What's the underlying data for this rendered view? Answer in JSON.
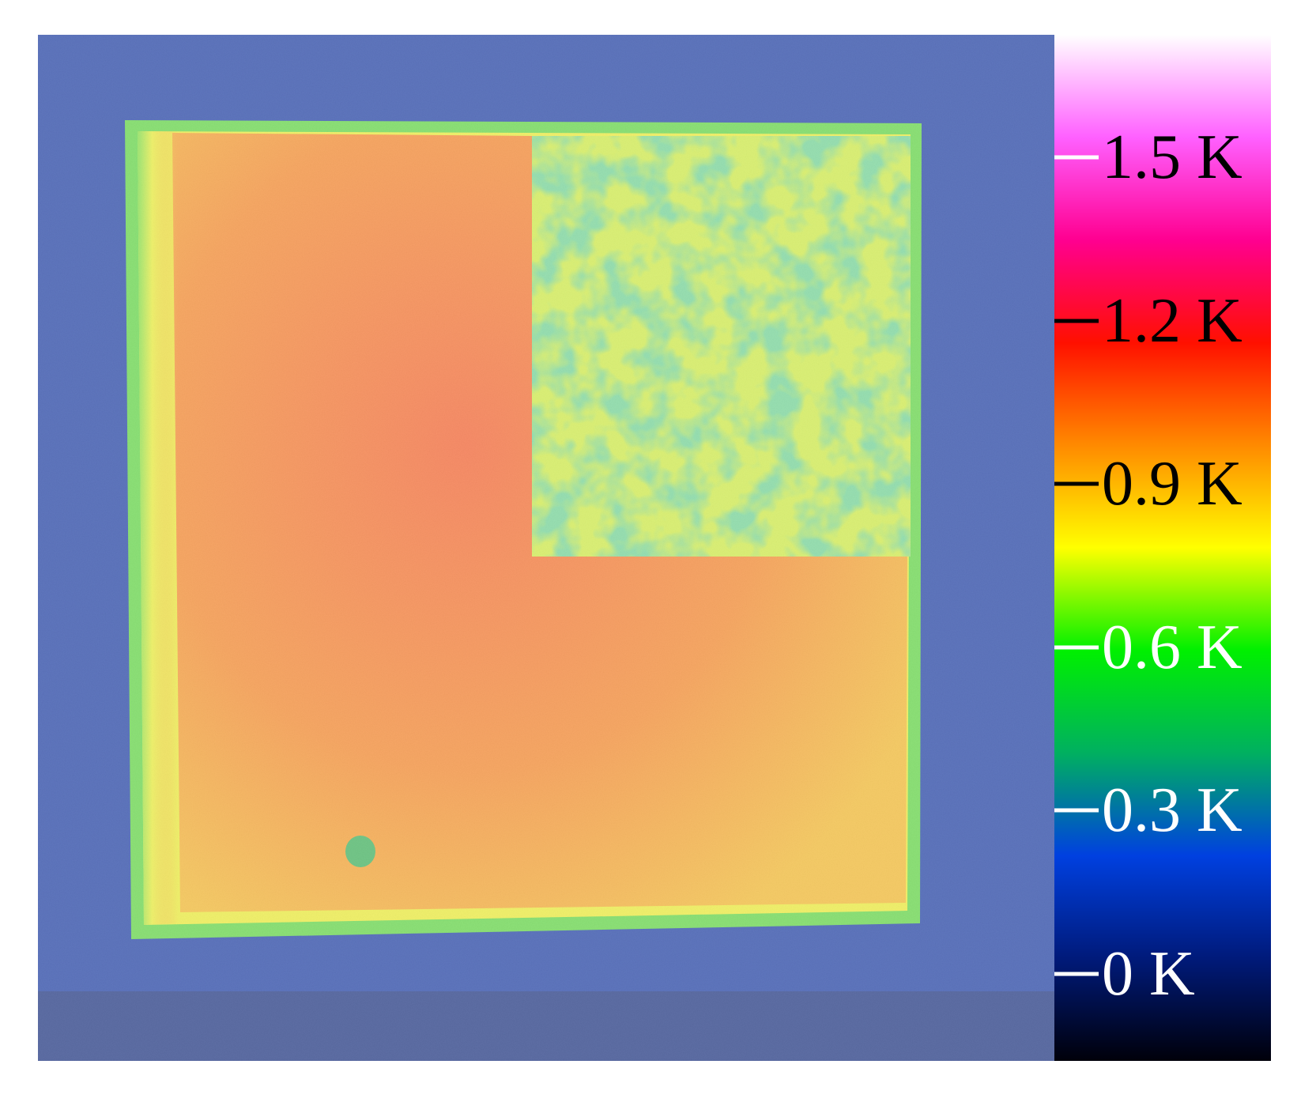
{
  "colorbar": {
    "ticks": [
      {
        "label": "1.5 K",
        "value": 1.5,
        "text_color": "#000000",
        "mark_color": "#ffffff"
      },
      {
        "label": "1.2 K",
        "value": 1.2,
        "text_color": "#000000",
        "mark_color": "#000000"
      },
      {
        "label": "0.9 K",
        "value": 0.9,
        "text_color": "#000000",
        "mark_color": "#000000"
      },
      {
        "label": "0.6 K",
        "value": 0.6,
        "text_color": "#ffffff",
        "mark_color": "#ffffff"
      },
      {
        "label": "0.3 K",
        "value": 0.3,
        "text_color": "#ffffff",
        "mark_color": "#ffffff"
      },
      {
        "label": "0 K",
        "value": 0,
        "text_color": "#ffffff",
        "mark_color": "#ffffff"
      }
    ],
    "range": [
      0,
      1.8
    ],
    "colors": [
      "#00000a",
      "#001a7a",
      "#0040e0",
      "#00b060",
      "#00f000",
      "#ffff00",
      "#ff8a00",
      "#ff1000",
      "#ff0090",
      "#ff60ff",
      "#ffffff"
    ]
  },
  "scene": {
    "background_color": "#0a2d9a",
    "hot_region_color": "#f06a10",
    "edge_color": "#e8ea20",
    "cool_region_color": "#5cd43a",
    "spot_color": "#2aa84a"
  }
}
